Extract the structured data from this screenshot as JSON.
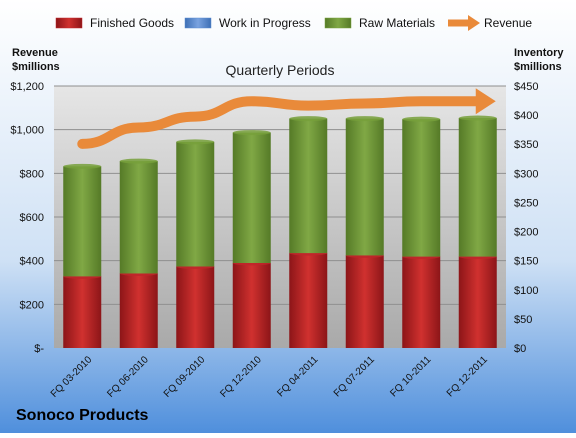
{
  "chart_data": {
    "type": "bar",
    "title": "Quarterly Periods",
    "company": "Sonoco Products",
    "left_axis_label": [
      "Revenue",
      "$millions"
    ],
    "right_axis_label": [
      "Inventory",
      "$millions"
    ],
    "categories": [
      "FQ 03-2010",
      "FQ 06-2010",
      "FQ 09-2010",
      "FQ 12-2010",
      "FQ 04-2011",
      "FQ 07-2011",
      "FQ 10-2011",
      "FQ 12-2011"
    ],
    "left_ticks": [
      "$-",
      "$200",
      "$400",
      "$600",
      "$800",
      "$1,000",
      "$1,200"
    ],
    "right_ticks": [
      "$0",
      "$50",
      "$100",
      "$150",
      "$200",
      "$250",
      "$300",
      "$350",
      "$400",
      "$450"
    ],
    "ylim_left": [
      0,
      1200
    ],
    "ylim_right": [
      0,
      450
    ],
    "legend_position": "top",
    "stack_axis": "right",
    "line_axis": "left",
    "series": [
      {
        "name": "Finished Goods",
        "kind": "bar",
        "color": "#c0262a",
        "values": [
          123,
          128,
          140,
          146,
          163,
          159,
          157,
          157
        ]
      },
      {
        "name": "Work in Progress",
        "kind": "bar",
        "color": "#5b8bd0",
        "values": [
          0,
          0,
          0,
          0,
          0,
          0,
          0,
          0
        ]
      },
      {
        "name": "Raw Materials",
        "kind": "bar",
        "color": "#77a03b",
        "values": [
          189,
          193,
          214,
          224,
          231,
          235,
          236,
          238
        ]
      },
      {
        "name": "Revenue",
        "kind": "line",
        "color": "#e98a3a",
        "values": [
          935,
          1010,
          1060,
          1130,
          1110,
          1120,
          1130,
          1130
        ]
      }
    ]
  }
}
